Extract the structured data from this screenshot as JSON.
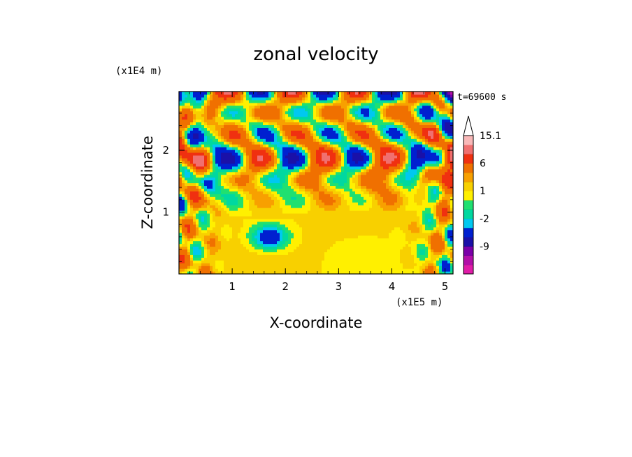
{
  "chart_data": {
    "type": "heatmap",
    "title": "zonal velocity",
    "xlabel": "X-coordinate",
    "ylabel": "Z-coordinate",
    "x_unit": "(x1E5 m)",
    "y_unit": "(x1E4 m)",
    "time_label": "t=69600 s",
    "xlim": [
      0,
      5.15
    ],
    "ylim": [
      0,
      2.95
    ],
    "x_ticks": [
      1,
      2,
      3,
      4,
      5
    ],
    "y_ticks": [
      1,
      2
    ],
    "colorbar": {
      "labels": [
        "15.1",
        "6",
        "1",
        "-2",
        "-9"
      ],
      "label_values": [
        15.1,
        6,
        1,
        -2,
        -9
      ],
      "levels": [
        -15,
        -12,
        -9,
        -6,
        -3,
        -2,
        -1,
        0,
        1,
        2,
        3,
        6,
        9,
        12,
        15.1
      ],
      "colors": [
        "#e01ca8",
        "#b20fa8",
        "#7a00a8",
        "#1a10a8",
        "#0020d0",
        "#00c8f0",
        "#00d8a0",
        "#20e070",
        "#fff000",
        "#f8d000",
        "#f8a000",
        "#f07000",
        "#f03010",
        "#f07070",
        "#f8b8b8"
      ],
      "extend_top_color": "#ffffff"
    },
    "field_pattern": "wave-like alternating positive/negative bands above z~1.2 (x1E4 m), mostly weak positive (yellow/green) below"
  }
}
